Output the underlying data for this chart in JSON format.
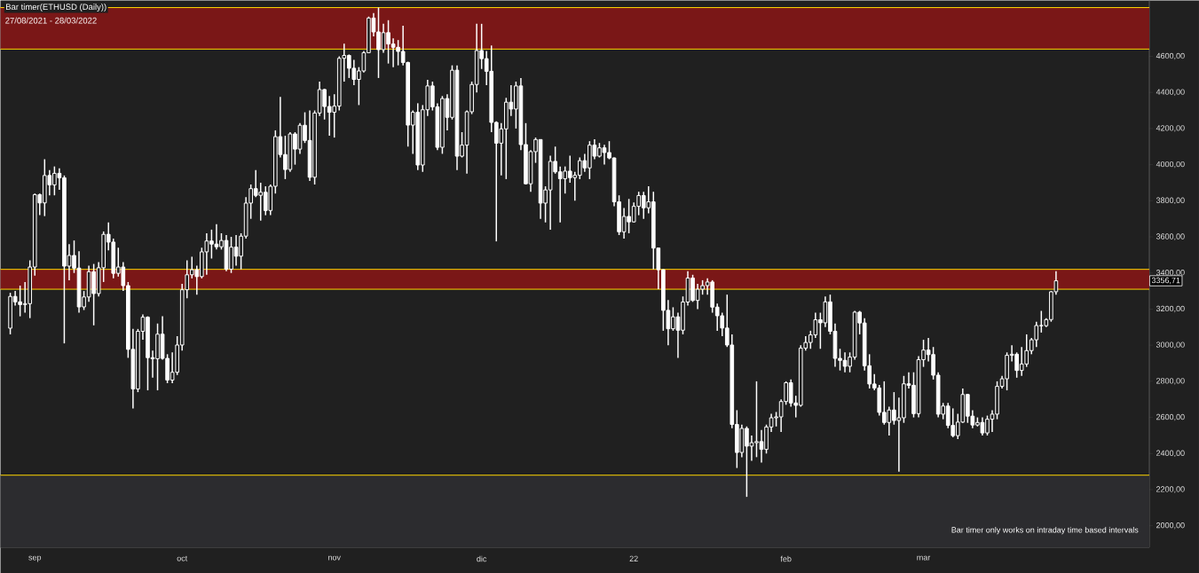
{
  "chart_data": {
    "type": "candlestick",
    "title": "Bar timer(ETHUSD (Daily))",
    "subtitle": "27/08/2021 - 28/03/2022",
    "annotations": [
      {
        "text": "3356,71",
        "y": 3356.71
      },
      "Bar timer only works on intraday time based intervals"
    ],
    "color": "#ffffff",
    "x": [
      "2021-08-27",
      "2021-08-28",
      "2021-08-29",
      "2021-08-30",
      "2021-08-31",
      "2021-09-01",
      "2021-09-02",
      "2021-09-03",
      "2021-09-04",
      "2021-09-05",
      "2021-09-06",
      "2021-09-07",
      "2021-09-08",
      "2021-09-09",
      "2021-09-10",
      "2021-09-11",
      "2021-09-12",
      "2021-09-13",
      "2021-09-14",
      "2021-09-15",
      "2021-09-16",
      "2021-09-17",
      "2021-09-18",
      "2021-09-19",
      "2021-09-20",
      "2021-09-21",
      "2021-09-22",
      "2021-09-23",
      "2021-09-24",
      "2021-09-25",
      "2021-09-26",
      "2021-09-27",
      "2021-09-28",
      "2021-09-29",
      "2021-09-30",
      "2021-10-01",
      "2021-10-02",
      "2021-10-03",
      "2021-10-04",
      "2021-10-05",
      "2021-10-06",
      "2021-10-07",
      "2021-10-08",
      "2021-10-09",
      "2021-10-10",
      "2021-10-11",
      "2021-10-12",
      "2021-10-13",
      "2021-10-14",
      "2021-10-15",
      "2021-10-16",
      "2021-10-17",
      "2021-10-18",
      "2021-10-19",
      "2021-10-20",
      "2021-10-21",
      "2021-10-22",
      "2021-10-23",
      "2021-10-24",
      "2021-10-25",
      "2021-10-26",
      "2021-10-27",
      "2021-10-28",
      "2021-10-29",
      "2021-10-30",
      "2021-10-31",
      "2021-11-01",
      "2021-11-02",
      "2021-11-03",
      "2021-11-04",
      "2021-11-05",
      "2021-11-06",
      "2021-11-07",
      "2021-11-08",
      "2021-11-09",
      "2021-11-10",
      "2021-11-11",
      "2021-11-12",
      "2021-11-13",
      "2021-11-14",
      "2021-11-15",
      "2021-11-16",
      "2021-11-17",
      "2021-11-18",
      "2021-11-19",
      "2021-11-20",
      "2021-11-21",
      "2021-11-22",
      "2021-11-23",
      "2021-11-24",
      "2021-11-25",
      "2021-11-26",
      "2021-11-27",
      "2021-11-28",
      "2021-11-29",
      "2021-11-30",
      "2021-12-01",
      "2021-12-02",
      "2021-12-03",
      "2021-12-04",
      "2021-12-05",
      "2021-12-06",
      "2021-12-07",
      "2021-12-08",
      "2021-12-09",
      "2021-12-10",
      "2021-12-11",
      "2021-12-12",
      "2021-12-13",
      "2021-12-14",
      "2021-12-15",
      "2021-12-16",
      "2021-12-17",
      "2021-12-18",
      "2021-12-19",
      "2021-12-20",
      "2021-12-21",
      "2021-12-22",
      "2021-12-23",
      "2021-12-24",
      "2021-12-25",
      "2021-12-26",
      "2021-12-27",
      "2021-12-28",
      "2021-12-29",
      "2021-12-30",
      "2021-12-31",
      "2022-01-01",
      "2022-01-02",
      "2022-01-03",
      "2022-01-04",
      "2022-01-05",
      "2022-01-06",
      "2022-01-07",
      "2022-01-08",
      "2022-01-09",
      "2022-01-10",
      "2022-01-11",
      "2022-01-12",
      "2022-01-13",
      "2022-01-14",
      "2022-01-15",
      "2022-01-16",
      "2022-01-17",
      "2022-01-18",
      "2022-01-19",
      "2022-01-20",
      "2022-01-21",
      "2022-01-22",
      "2022-01-23",
      "2022-01-24",
      "2022-01-25",
      "2022-01-26",
      "2022-01-27",
      "2022-01-28",
      "2022-01-29",
      "2022-01-30",
      "2022-01-31",
      "2022-02-01",
      "2022-02-02",
      "2022-02-03",
      "2022-02-04",
      "2022-02-05",
      "2022-02-06",
      "2022-02-07",
      "2022-02-08",
      "2022-02-09",
      "2022-02-10",
      "2022-02-11",
      "2022-02-12",
      "2022-02-13",
      "2022-02-14",
      "2022-02-15",
      "2022-02-16",
      "2022-02-17",
      "2022-02-18",
      "2022-02-19",
      "2022-02-20",
      "2022-02-21",
      "2022-02-22",
      "2022-02-23",
      "2022-02-24",
      "2022-02-25",
      "2022-02-26",
      "2022-02-27",
      "2022-02-28",
      "2022-03-01",
      "2022-03-02",
      "2022-03-03",
      "2022-03-04",
      "2022-03-05",
      "2022-03-06",
      "2022-03-07",
      "2022-03-08",
      "2022-03-09",
      "2022-03-10",
      "2022-03-11",
      "2022-03-12",
      "2022-03-13",
      "2022-03-14",
      "2022-03-15",
      "2022-03-16",
      "2022-03-17",
      "2022-03-18",
      "2022-03-19",
      "2022-03-20",
      "2022-03-21",
      "2022-03-22",
      "2022-03-23",
      "2022-03-24",
      "2022-03-25",
      "2022-03-26",
      "2022-03-27",
      "2022-03-28"
    ],
    "ohlc": [
      [
        3094,
        3290,
        3060,
        3270
      ],
      [
        3270,
        3300,
        3220,
        3240
      ],
      [
        3240,
        3330,
        3160,
        3225
      ],
      [
        3225,
        3350,
        3180,
        3230
      ],
      [
        3230,
        3470,
        3150,
        3433
      ],
      [
        3433,
        3840,
        3385,
        3834
      ],
      [
        3834,
        3840,
        3720,
        3788
      ],
      [
        3788,
        4030,
        3715,
        3940
      ],
      [
        3940,
        3970,
        3830,
        3888
      ],
      [
        3888,
        3990,
        3830,
        3952
      ],
      [
        3952,
        3980,
        3860,
        3927
      ],
      [
        3927,
        3940,
        3010,
        3438
      ],
      [
        3438,
        3560,
        3360,
        3497
      ],
      [
        3497,
        3580,
        3400,
        3427
      ],
      [
        3427,
        3520,
        3180,
        3212
      ],
      [
        3212,
        3300,
        3195,
        3267
      ],
      [
        3267,
        3440,
        3240,
        3407
      ],
      [
        3407,
        3450,
        3110,
        3286
      ],
      [
        3286,
        3460,
        3270,
        3429
      ],
      [
        3429,
        3630,
        3350,
        3614
      ],
      [
        3614,
        3680,
        3525,
        3571
      ],
      [
        3571,
        3590,
        3370,
        3398
      ],
      [
        3398,
        3540,
        3380,
        3433
      ],
      [
        3433,
        3460,
        3300,
        3330
      ],
      [
        3330,
        3350,
        2930,
        2977
      ],
      [
        2977,
        3090,
        2650,
        2758
      ],
      [
        2758,
        3090,
        2740,
        3077
      ],
      [
        3077,
        3170,
        3030,
        3155
      ],
      [
        3155,
        3160,
        2750,
        2931
      ],
      [
        2931,
        2970,
        2820,
        2925
      ],
      [
        2925,
        3120,
        2750,
        3061
      ],
      [
        3061,
        3160,
        2920,
        2927
      ],
      [
        2927,
        2950,
        2790,
        2807
      ],
      [
        2807,
        2960,
        2790,
        2850
      ],
      [
        2850,
        3050,
        2835,
        3001
      ],
      [
        3001,
        3340,
        2970,
        3307
      ],
      [
        3307,
        3470,
        3260,
        3390
      ],
      [
        3390,
        3490,
        3370,
        3418
      ],
      [
        3418,
        3440,
        3280,
        3380
      ],
      [
        3380,
        3540,
        3370,
        3517
      ],
      [
        3517,
        3620,
        3390,
        3577
      ],
      [
        3577,
        3640,
        3480,
        3560
      ],
      [
        3560,
        3670,
        3530,
        3545
      ],
      [
        3545,
        3620,
        3530,
        3580
      ],
      [
        3580,
        3610,
        3410,
        3421
      ],
      [
        3421,
        3600,
        3400,
        3543
      ],
      [
        3543,
        3610,
        3440,
        3493
      ],
      [
        3493,
        3620,
        3420,
        3604
      ],
      [
        3604,
        3820,
        3590,
        3787
      ],
      [
        3787,
        3890,
        3700,
        3867
      ],
      [
        3867,
        3970,
        3820,
        3830
      ],
      [
        3830,
        3900,
        3690,
        3847
      ],
      [
        3847,
        3880,
        3720,
        3746
      ],
      [
        3746,
        3890,
        3720,
        3880
      ],
      [
        3880,
        4190,
        3840,
        4155
      ],
      [
        4155,
        4375,
        4040,
        4056
      ],
      [
        4056,
        4160,
        3920,
        3973
      ],
      [
        3973,
        4180,
        3960,
        4170
      ],
      [
        4170,
        4180,
        4000,
        4086
      ],
      [
        4086,
        4230,
        4060,
        4218
      ],
      [
        4218,
        4290,
        4120,
        4134
      ],
      [
        4134,
        4300,
        3910,
        3930
      ],
      [
        3930,
        4300,
        3890,
        4286
      ],
      [
        4286,
        4460,
        4270,
        4416
      ],
      [
        4416,
        4420,
        4250,
        4322
      ],
      [
        4322,
        4380,
        4160,
        4290
      ],
      [
        4290,
        4390,
        4150,
        4324
      ],
      [
        4324,
        4600,
        4300,
        4589
      ],
      [
        4589,
        4670,
        4460,
        4605
      ],
      [
        4605,
        4610,
        4480,
        4534
      ],
      [
        4534,
        4580,
        4440,
        4472
      ],
      [
        4472,
        4540,
        4330,
        4519
      ],
      [
        4519,
        4630,
        4510,
        4620
      ],
      [
        4620,
        4820,
        4620,
        4812
      ],
      [
        4812,
        4840,
        4710,
        4735
      ],
      [
        4735,
        4870,
        4480,
        4637
      ],
      [
        4637,
        4780,
        4620,
        4731
      ],
      [
        4731,
        4800,
        4560,
        4668
      ],
      [
        4668,
        4700,
        4540,
        4650
      ],
      [
        4650,
        4690,
        4550,
        4627
      ],
      [
        4627,
        4770,
        4550,
        4566
      ],
      [
        4566,
        4570,
        4100,
        4219
      ],
      [
        4219,
        4300,
        4060,
        4290
      ],
      [
        4290,
        4340,
        3970,
        3998
      ],
      [
        3998,
        4330,
        3960,
        4304
      ],
      [
        4304,
        4470,
        4270,
        4436
      ],
      [
        4436,
        4460,
        4300,
        4320
      ],
      [
        4320,
        4340,
        4080,
        4096
      ],
      [
        4096,
        4380,
        4060,
        4366
      ],
      [
        4366,
        4390,
        4190,
        4262
      ],
      [
        4262,
        4550,
        4250,
        4523
      ],
      [
        4523,
        4550,
        3970,
        4047
      ],
      [
        4047,
        4180,
        4040,
        4108
      ],
      [
        4108,
        4300,
        3950,
        4293
      ],
      [
        4293,
        4460,
        4280,
        4444
      ],
      [
        4444,
        4780,
        4400,
        4632
      ],
      [
        4632,
        4780,
        4530,
        4587
      ],
      [
        4587,
        4630,
        4440,
        4517
      ],
      [
        4517,
        4660,
        4180,
        4234
      ],
      [
        4234,
        4240,
        3575,
        4119
      ],
      [
        4119,
        4230,
        3940,
        4198
      ],
      [
        4198,
        4370,
        3920,
        4346
      ],
      [
        4346,
        4440,
        4270,
        4308
      ],
      [
        4308,
        4460,
        4200,
        4436
      ],
      [
        4436,
        4480,
        4080,
        4111
      ],
      [
        4111,
        4230,
        3890,
        3894
      ],
      [
        3894,
        4080,
        3850,
        4072
      ],
      [
        4072,
        4150,
        4010,
        4139
      ],
      [
        4139,
        4140,
        3700,
        3787
      ],
      [
        3787,
        3880,
        3680,
        3860
      ],
      [
        3860,
        4050,
        3640,
        4018
      ],
      [
        4018,
        4100,
        3950,
        3960
      ],
      [
        3960,
        3990,
        3680,
        3922
      ],
      [
        3922,
        3990,
        3840,
        3964
      ],
      [
        3964,
        4050,
        3900,
        3928
      ],
      [
        3928,
        3960,
        3800,
        3941
      ],
      [
        3941,
        4040,
        3920,
        4022
      ],
      [
        4022,
        4060,
        3960,
        3982
      ],
      [
        3982,
        4130,
        3920,
        4108
      ],
      [
        4108,
        4140,
        4030,
        4047
      ],
      [
        4047,
        4120,
        4040,
        4093
      ],
      [
        4093,
        4110,
        4000,
        4067
      ],
      [
        4067,
        4130,
        4030,
        4037
      ],
      [
        4037,
        4040,
        3770,
        3794
      ],
      [
        3794,
        3830,
        3610,
        3628
      ],
      [
        3628,
        3760,
        3590,
        3713
      ],
      [
        3713,
        3810,
        3620,
        3683
      ],
      [
        3683,
        3790,
        3680,
        3769
      ],
      [
        3769,
        3850,
        3720,
        3829
      ],
      [
        3829,
        3850,
        3700,
        3761
      ],
      [
        3761,
        3880,
        3730,
        3794
      ],
      [
        3794,
        3850,
        3420,
        3538
      ],
      [
        3538,
        3540,
        3310,
        3418
      ],
      [
        3418,
        3420,
        3080,
        3193
      ],
      [
        3193,
        3250,
        3000,
        3091
      ],
      [
        3091,
        3210,
        3080,
        3157
      ],
      [
        3157,
        3180,
        2930,
        3083
      ],
      [
        3083,
        3270,
        3060,
        3239
      ],
      [
        3239,
        3410,
        3220,
        3372
      ],
      [
        3372,
        3390,
        3240,
        3248
      ],
      [
        3248,
        3340,
        3200,
        3310
      ],
      [
        3310,
        3360,
        3280,
        3330
      ],
      [
        3330,
        3370,
        3280,
        3350
      ],
      [
        3350,
        3360,
        3180,
        3211
      ],
      [
        3211,
        3230,
        3080,
        3163
      ],
      [
        3163,
        3180,
        3050,
        3095
      ],
      [
        3095,
        3280,
        2990,
        3001
      ],
      [
        3001,
        3060,
        2540,
        2561
      ],
      [
        2561,
        2640,
        2320,
        2406
      ],
      [
        2406,
        2560,
        2380,
        2539
      ],
      [
        2539,
        2550,
        2160,
        2441
      ],
      [
        2441,
        2500,
        2360,
        2460
      ],
      [
        2460,
        2800,
        2380,
        2466
      ],
      [
        2466,
        2530,
        2350,
        2423
      ],
      [
        2423,
        2560,
        2400,
        2547
      ],
      [
        2547,
        2620,
        2520,
        2598
      ],
      [
        2598,
        2630,
        2550,
        2603
      ],
      [
        2603,
        2700,
        2520,
        2688
      ],
      [
        2688,
        2800,
        2670,
        2792
      ],
      [
        2792,
        2810,
        2660,
        2680
      ],
      [
        2680,
        2720,
        2600,
        2667
      ],
      [
        2667,
        3000,
        2660,
        2984
      ],
      [
        2984,
        3050,
        2970,
        3015
      ],
      [
        3015,
        3080,
        2980,
        3057
      ],
      [
        3057,
        3180,
        3040,
        3141
      ],
      [
        3141,
        3180,
        2980,
        3124
      ],
      [
        3124,
        3270,
        3100,
        3240
      ],
      [
        3240,
        3280,
        3060,
        3077
      ],
      [
        3077,
        3120,
        2880,
        2927
      ],
      [
        2927,
        2980,
        2860,
        2916
      ],
      [
        2916,
        2960,
        2850,
        2883
      ],
      [
        2883,
        2960,
        2850,
        2934
      ],
      [
        2934,
        3190,
        2920,
        3183
      ],
      [
        3183,
        3190,
        3060,
        3123
      ],
      [
        3123,
        3150,
        2860,
        2886
      ],
      [
        2886,
        2950,
        2760,
        2785
      ],
      [
        2785,
        2840,
        2750,
        2763
      ],
      [
        2763,
        2780,
        2610,
        2628
      ],
      [
        2628,
        2800,
        2560,
        2572
      ],
      [
        2572,
        2660,
        2500,
        2641
      ],
      [
        2641,
        2740,
        2560,
        2583
      ],
      [
        2583,
        2710,
        2300,
        2598
      ],
      [
        2598,
        2830,
        2570,
        2786
      ],
      [
        2786,
        2850,
        2760,
        2778
      ],
      [
        2778,
        2850,
        2600,
        2621
      ],
      [
        2621,
        2940,
        2600,
        2920
      ],
      [
        2920,
        3030,
        2880,
        2973
      ],
      [
        2973,
        3040,
        2910,
        2948
      ],
      [
        2948,
        2990,
        2810,
        2834
      ],
      [
        2834,
        2850,
        2600,
        2618
      ],
      [
        2618,
        2680,
        2590,
        2663
      ],
      [
        2663,
        2680,
        2540,
        2556
      ],
      [
        2556,
        2650,
        2490,
        2499
      ],
      [
        2499,
        2620,
        2480,
        2574
      ],
      [
        2574,
        2760,
        2570,
        2727
      ],
      [
        2727,
        2730,
        2570,
        2607
      ],
      [
        2607,
        2640,
        2540,
        2558
      ],
      [
        2558,
        2600,
        2550,
        2572
      ],
      [
        2572,
        2600,
        2500,
        2514
      ],
      [
        2514,
        2610,
        2500,
        2590
      ],
      [
        2590,
        2640,
        2520,
        2618
      ],
      [
        2618,
        2800,
        2590,
        2772
      ],
      [
        2772,
        2830,
        2760,
        2814
      ],
      [
        2814,
        2960,
        2750,
        2944
      ],
      [
        2944,
        3000,
        2910,
        2950
      ],
      [
        2950,
        2960,
        2820,
        2860
      ],
      [
        2860,
        2990,
        2830,
        2896
      ],
      [
        2896,
        3060,
        2880,
        2970
      ],
      [
        2970,
        3040,
        2950,
        3030
      ],
      [
        3030,
        3130,
        2990,
        3109
      ],
      [
        3109,
        3190,
        3070,
        3108
      ],
      [
        3108,
        3150,
        3100,
        3142
      ],
      [
        3142,
        3300,
        3130,
        3296
      ],
      [
        3296,
        3410,
        3280,
        3356.71
      ]
    ],
    "xlim": [
      "2021-08-25",
      "2022-04-16"
    ],
    "xticks": [
      {
        "value": "2021-09-01",
        "label": "sep"
      },
      {
        "value": "2021-10-01",
        "label": "oct"
      },
      {
        "value": "2021-11-01",
        "label": "nov"
      },
      {
        "value": "2021-12-01",
        "label": "dic"
      },
      {
        "value": "2022-01-01",
        "label": "22"
      },
      {
        "value": "2022-02-01",
        "label": "feb"
      },
      {
        "value": "2022-03-01",
        "label": "mar"
      }
    ],
    "ylim": [
      1880,
      4910
    ],
    "yticks": [
      {
        "value": 2000,
        "label": "2000,00"
      },
      {
        "value": 2200,
        "label": "2200,00"
      },
      {
        "value": 2400,
        "label": "2400,00"
      },
      {
        "value": 2600,
        "label": "2600,00"
      },
      {
        "value": 2800,
        "label": "2800,00"
      },
      {
        "value": 3000,
        "label": "3000,00"
      },
      {
        "value": 3200,
        "label": "3200,00"
      },
      {
        "value": 3400,
        "label": "3400,00"
      },
      {
        "value": 3600,
        "label": "3600,00"
      },
      {
        "value": 3800,
        "label": "3800,00"
      },
      {
        "value": 4000,
        "label": "4000,00"
      },
      {
        "value": 4200,
        "label": "4200,00"
      },
      {
        "value": 4400,
        "label": "4400,00"
      },
      {
        "value": 4600,
        "label": "4600,00"
      }
    ],
    "bands": [
      {
        "axis": "y",
        "from": 1880,
        "to": 2280,
        "color": "#2c2c2f"
      },
      {
        "axis": "y",
        "from": 4640,
        "to": 4870,
        "color": "#7a1717"
      },
      {
        "axis": "y",
        "from": 3310,
        "to": 3420,
        "color": "#7a1717"
      }
    ],
    "ref_lines": [
      {
        "axis": "y",
        "value": 2280,
        "color": "#ffd700"
      },
      {
        "axis": "y",
        "value": 4640,
        "color": "#ffd700"
      },
      {
        "axis": "y",
        "value": 4870,
        "color": "#ffd700"
      },
      {
        "axis": "y",
        "value": 3310,
        "color": "#ffd700"
      },
      {
        "axis": "y",
        "value": 3420,
        "color": "#ffd700"
      }
    ]
  }
}
